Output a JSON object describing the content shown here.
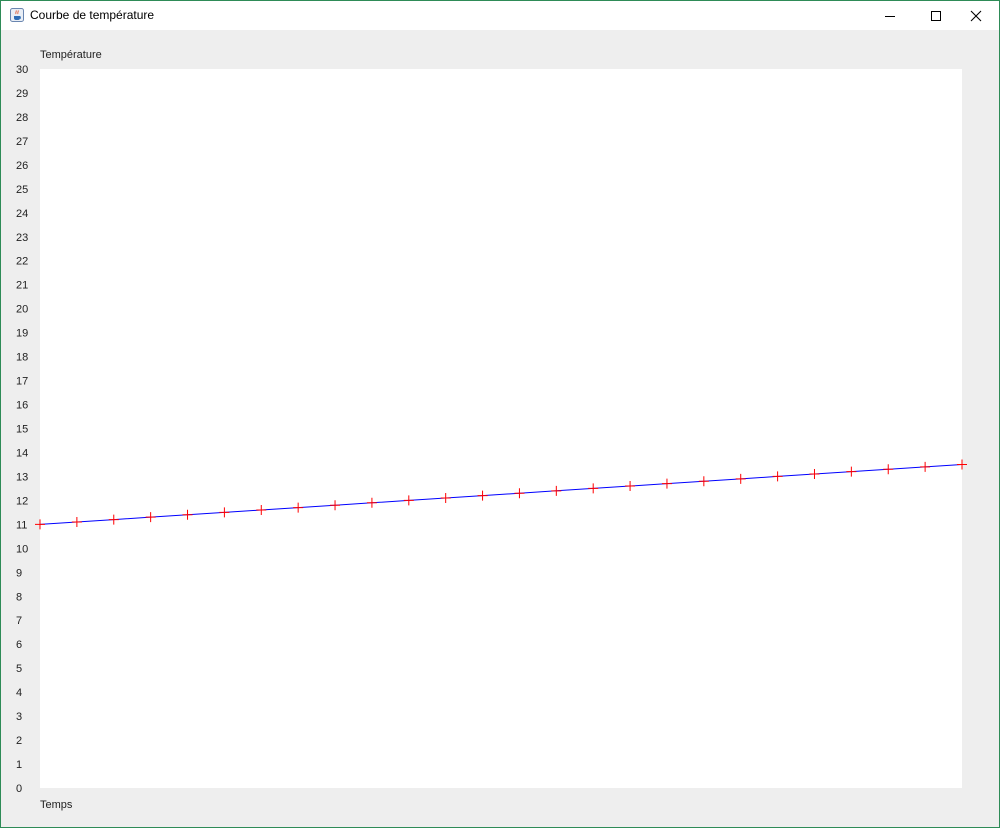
{
  "window": {
    "title": "Courbe de température",
    "icon": "java-cup-icon",
    "controls": [
      "minimize-icon",
      "maximize-icon",
      "close-icon"
    ]
  },
  "chart_data": {
    "type": "line",
    "ylabel": "Température",
    "xlabel": "Temps",
    "ylim": [
      0,
      30
    ],
    "yticks": [
      0,
      1,
      2,
      3,
      4,
      5,
      6,
      7,
      8,
      9,
      10,
      11,
      12,
      13,
      14,
      15,
      16,
      17,
      18,
      19,
      20,
      21,
      22,
      23,
      24,
      25,
      26,
      27,
      28,
      29,
      30
    ],
    "x": [
      0,
      1,
      2,
      3,
      4,
      5,
      6,
      7,
      8,
      9,
      10,
      11,
      12,
      13,
      14,
      15,
      16,
      17,
      18,
      19,
      20,
      21,
      22,
      23,
      24,
      25
    ],
    "series": [
      {
        "values": [
          11.0,
          11.1,
          11.2,
          11.3,
          11.4,
          11.5,
          11.6,
          11.7,
          11.8,
          11.9,
          12.0,
          12.1,
          12.2,
          12.3,
          12.4,
          12.5,
          12.6,
          12.7,
          12.8,
          12.9,
          13.0,
          13.1,
          13.2,
          13.3,
          13.4,
          13.5
        ],
        "line_color": "#0000ff",
        "marker_color": "#ff0000",
        "marker": "plus"
      }
    ],
    "plot_background": "#ffffff",
    "grid": false
  }
}
